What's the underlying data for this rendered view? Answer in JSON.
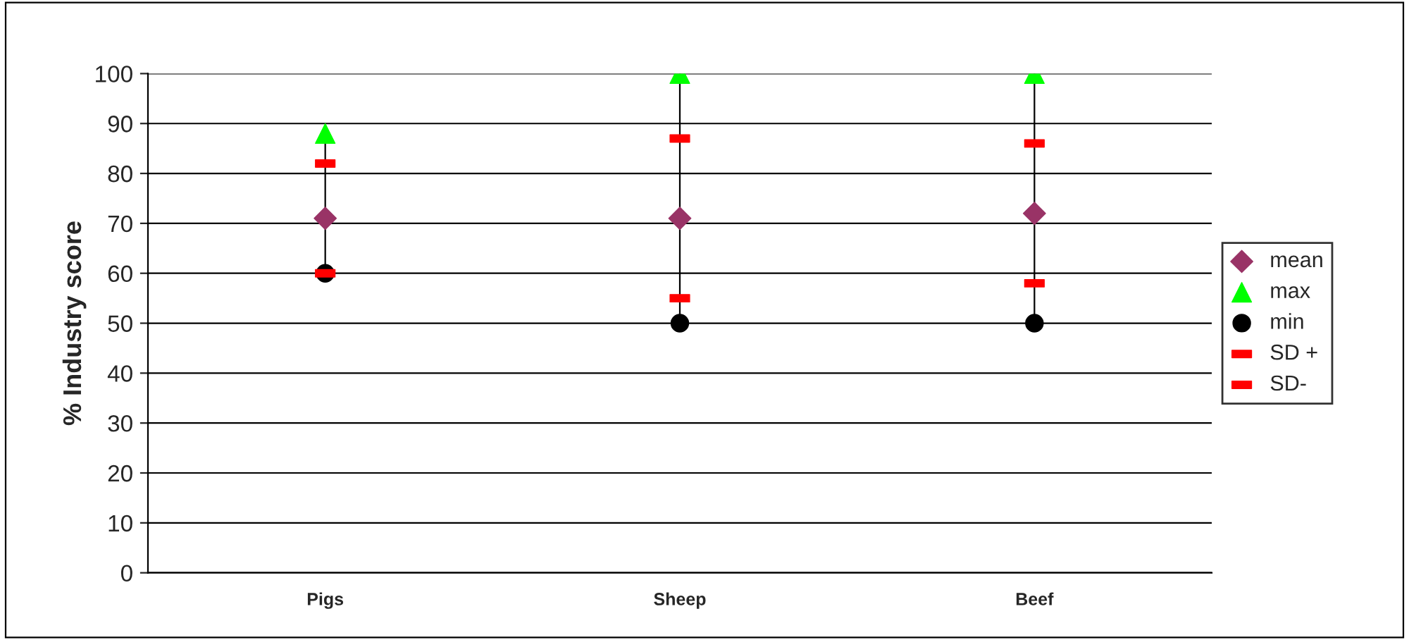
{
  "chart_data": {
    "type": "scatter",
    "ylabel": "% Industry score",
    "categories": [
      "Pigs",
      "Sheep",
      "Beef"
    ],
    "ylim": [
      0,
      100
    ],
    "yticks": [
      0,
      10,
      20,
      30,
      40,
      50,
      60,
      70,
      80,
      90,
      100
    ],
    "grid": "y",
    "legend": "right",
    "series": [
      {
        "name": "mean",
        "color": "#993366",
        "marker": "diamond",
        "values": [
          71,
          71,
          72
        ]
      },
      {
        "name": "max",
        "color": "#00ff00",
        "marker": "triangle",
        "values": [
          88,
          100,
          100
        ]
      },
      {
        "name": "min",
        "color": "#000000",
        "marker": "circle",
        "values": [
          60,
          50,
          50
        ]
      },
      {
        "name": "SD +",
        "color": "#ff0000",
        "values": [
          82,
          87,
          86
        ]
      },
      {
        "name": "SD-",
        "color": "#ff0000",
        "values": [
          60,
          55,
          58
        ]
      }
    ]
  }
}
